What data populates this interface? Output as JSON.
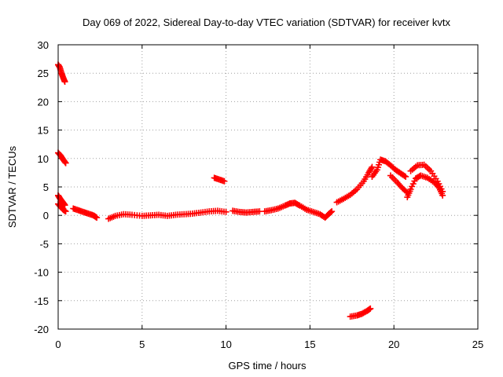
{
  "chart_data": {
    "type": "scatter",
    "title": "Day 069 of 2022, Sidereal Day-to-day VTEC variation (SDTVAR) for receiver kvtx",
    "xlabel": "GPS time / hours",
    "ylabel": "SDTVAR / TECUs",
    "xlim": [
      0,
      25
    ],
    "ylim": [
      -20,
      30
    ],
    "xticks": [
      "0",
      "5",
      "10",
      "15",
      "20",
      "25"
    ],
    "yticks": [
      "-20",
      "-15",
      "-10",
      "-5",
      "0",
      "5",
      "10",
      "15",
      "20",
      "25",
      "30"
    ],
    "grid": true,
    "marker": "+",
    "series": [
      {
        "name": "arc-a",
        "color": "#ff0000",
        "points": [
          [
            0.0,
            26.5
          ],
          [
            0.1,
            26.0
          ],
          [
            0.2,
            25.0
          ],
          [
            0.3,
            24.2
          ],
          [
            0.4,
            23.5
          ]
        ]
      },
      {
        "name": "arc-b",
        "color": "#ff0000",
        "points": [
          [
            0.0,
            11.0
          ],
          [
            0.15,
            10.5
          ],
          [
            0.3,
            9.8
          ],
          [
            0.45,
            9.2
          ]
        ]
      },
      {
        "name": "arc-c",
        "color": "#ff0000",
        "points": [
          [
            0.0,
            3.5
          ],
          [
            0.1,
            3.0
          ],
          [
            0.2,
            2.6
          ],
          [
            0.3,
            2.2
          ],
          [
            0.4,
            1.8
          ]
        ]
      },
      {
        "name": "arc-d",
        "color": "#ff0000",
        "points": [
          [
            0.0,
            2.0
          ],
          [
            0.15,
            1.5
          ],
          [
            0.3,
            1.0
          ],
          [
            0.45,
            0.7
          ]
        ]
      },
      {
        "name": "arc-e",
        "color": "#ff0000",
        "points": [
          [
            0.9,
            1.2
          ],
          [
            1.2,
            0.9
          ],
          [
            1.5,
            0.6
          ],
          [
            1.8,
            0.3
          ],
          [
            2.1,
            0.0
          ],
          [
            2.3,
            -0.4
          ]
        ]
      },
      {
        "name": "arc-f",
        "color": "#ff0000",
        "points": [
          [
            3.0,
            -0.6
          ],
          [
            3.4,
            -0.1
          ],
          [
            3.9,
            0.2
          ],
          [
            4.4,
            0.1
          ],
          [
            5.0,
            -0.1
          ],
          [
            5.5,
            0.0
          ],
          [
            6.0,
            0.1
          ],
          [
            6.5,
            -0.1
          ],
          [
            7.0,
            0.1
          ],
          [
            7.5,
            0.2
          ],
          [
            8.0,
            0.3
          ],
          [
            8.5,
            0.5
          ],
          [
            9.0,
            0.7
          ],
          [
            9.5,
            0.8
          ],
          [
            10.0,
            0.6
          ]
        ]
      },
      {
        "name": "arc-g",
        "color": "#ff0000",
        "points": [
          [
            9.3,
            6.6
          ],
          [
            9.6,
            6.3
          ],
          [
            9.9,
            6.0
          ]
        ]
      },
      {
        "name": "arc-h",
        "color": "#ff0000",
        "points": [
          [
            10.4,
            0.8
          ],
          [
            10.8,
            0.6
          ],
          [
            11.2,
            0.5
          ],
          [
            11.6,
            0.6
          ],
          [
            12.0,
            0.7
          ]
        ]
      },
      {
        "name": "arc-i",
        "color": "#ff0000",
        "points": [
          [
            12.3,
            0.7
          ],
          [
            12.7,
            0.9
          ],
          [
            13.1,
            1.2
          ],
          [
            13.5,
            1.7
          ],
          [
            13.8,
            2.1
          ],
          [
            14.1,
            2.2
          ],
          [
            14.4,
            1.7
          ],
          [
            14.8,
            1.0
          ],
          [
            15.2,
            0.6
          ],
          [
            15.6,
            0.2
          ],
          [
            15.9,
            -0.4
          ],
          [
            16.1,
            0.2
          ],
          [
            16.3,
            0.7
          ]
        ]
      },
      {
        "name": "arc-j",
        "color": "#ff0000",
        "points": [
          [
            16.6,
            2.3
          ],
          [
            17.0,
            2.9
          ],
          [
            17.4,
            3.6
          ],
          [
            17.8,
            4.6
          ],
          [
            18.2,
            6.0
          ],
          [
            18.5,
            7.5
          ],
          [
            18.7,
            8.5
          ]
        ]
      },
      {
        "name": "arc-k",
        "color": "#ff0000",
        "points": [
          [
            18.7,
            6.8
          ],
          [
            19.0,
            8.0
          ],
          [
            19.2,
            9.8
          ],
          [
            19.5,
            9.5
          ],
          [
            19.8,
            8.8
          ],
          [
            20.1,
            8.0
          ],
          [
            20.4,
            7.4
          ],
          [
            20.7,
            6.8
          ]
        ]
      },
      {
        "name": "arc-l",
        "color": "#ff0000",
        "points": [
          [
            19.8,
            7.0
          ],
          [
            20.2,
            5.8
          ],
          [
            20.5,
            4.8
          ],
          [
            20.8,
            4.0
          ]
        ]
      },
      {
        "name": "arc-m",
        "color": "#ff0000",
        "points": [
          [
            20.8,
            3.2
          ],
          [
            21.0,
            4.6
          ],
          [
            21.3,
            6.5
          ],
          [
            21.6,
            7.0
          ],
          [
            22.0,
            6.6
          ],
          [
            22.4,
            5.8
          ],
          [
            22.7,
            4.8
          ],
          [
            22.9,
            3.5
          ]
        ]
      },
      {
        "name": "arc-n",
        "color": "#ff0000",
        "points": [
          [
            21.0,
            7.8
          ],
          [
            21.4,
            8.8
          ],
          [
            21.8,
            8.9
          ],
          [
            22.2,
            7.8
          ],
          [
            22.6,
            6.0
          ],
          [
            22.9,
            4.2
          ]
        ]
      },
      {
        "name": "arc-o",
        "color": "#ff0000",
        "points": [
          [
            17.4,
            -17.8
          ],
          [
            17.8,
            -17.6
          ],
          [
            18.1,
            -17.3
          ],
          [
            18.4,
            -16.8
          ],
          [
            18.6,
            -16.4
          ]
        ]
      }
    ]
  }
}
